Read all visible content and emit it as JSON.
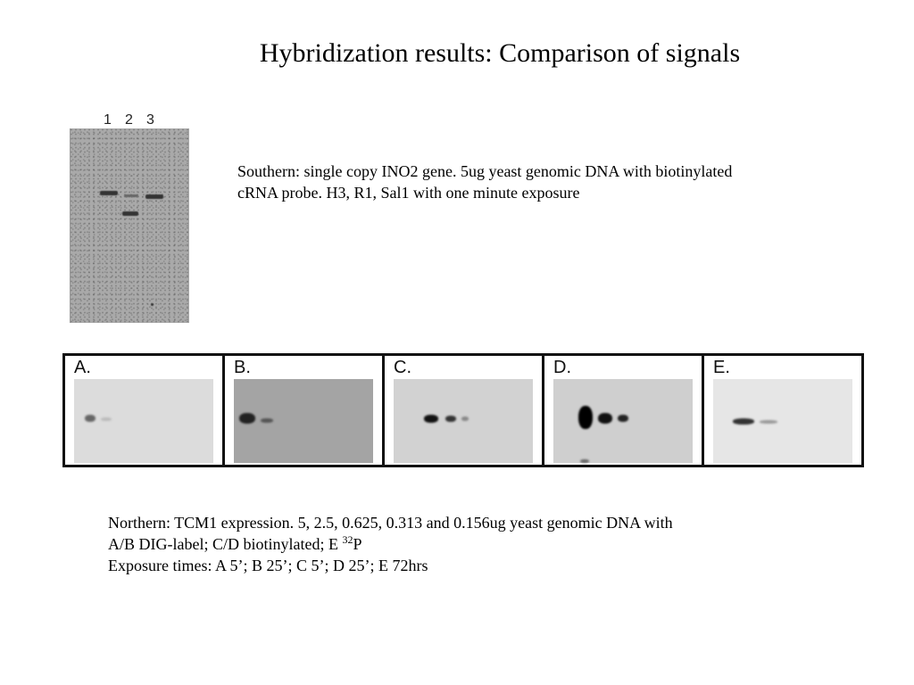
{
  "title": "Hybridization results:  Comparison of signals",
  "southern": {
    "lane_labels": [
      "1",
      "2",
      "3"
    ],
    "caption_line1": "Southern:  single copy INO2 gene.  5ug yeast genomic DNA with biotinylated",
    "caption_line2": "cRNA probe.  H3, R1, Sal1 with one minute exposure"
  },
  "northern": {
    "panels": [
      "A.",
      "B.",
      "C.",
      "D.",
      "E."
    ],
    "caption_line1": "Northern:  TCM1 expression.  5, 2.5, 0.625, 0.313 and 0.156ug yeast genomic DNA with",
    "caption_line2_prefix": "A/B DIG-label; C/D biotinylated; E ",
    "caption_line2_sup": "32",
    "caption_line2_suffix": "P",
    "caption_line3": "Exposure times:  A 5’; B 25’; C 5’; D 25’; E 72hrs"
  },
  "colors": {
    "blot_gray": "#a9a9a9",
    "band_dark": "#222222",
    "frame": "#111111"
  }
}
